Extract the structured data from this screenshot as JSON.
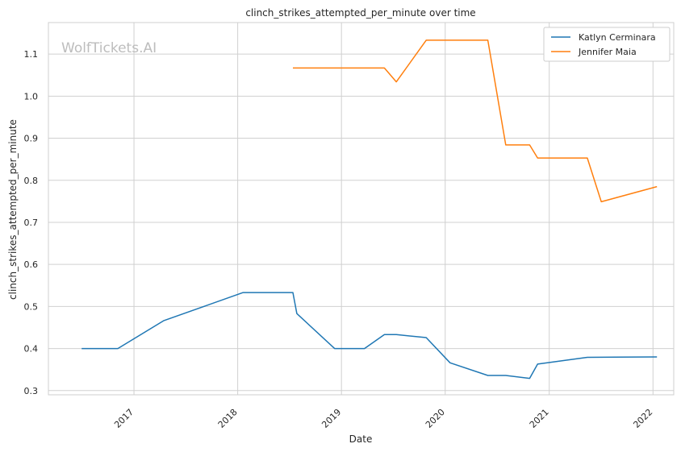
{
  "chart_data": {
    "type": "line",
    "title": "clinch_strikes_attempted_per_minute over time",
    "xlabel": "Date",
    "ylabel": "clinch_strikes_attempted_per_minute",
    "watermark": "WolfTickets.AI",
    "xlim": [
      "2016-03-06",
      "2022-03-15"
    ],
    "ylim": [
      0.29,
      1.175
    ],
    "x_ticks": [
      "2017",
      "2018",
      "2019",
      "2020",
      "2021",
      "2022"
    ],
    "y_ticks": [
      "0.3",
      "0.4",
      "0.5",
      "0.6",
      "0.7",
      "0.8",
      "0.9",
      "1.0",
      "1.1"
    ],
    "grid": true,
    "legend_position": "top-right",
    "series": [
      {
        "name": "Katlyn Cerminara",
        "color": "#1f77b4",
        "points": [
          {
            "x": "2016-07-01",
            "y": 0.4
          },
          {
            "x": "2016-11-05",
            "y": 0.4
          },
          {
            "x": "2017-04-15",
            "y": 0.466
          },
          {
            "x": "2018-01-20",
            "y": 0.533
          },
          {
            "x": "2018-07-14",
            "y": 0.533
          },
          {
            "x": "2018-07-28",
            "y": 0.483
          },
          {
            "x": "2018-12-08",
            "y": 0.4
          },
          {
            "x": "2019-03-23",
            "y": 0.4
          },
          {
            "x": "2019-06-01",
            "y": 0.433
          },
          {
            "x": "2019-07-13",
            "y": 0.433
          },
          {
            "x": "2019-10-26",
            "y": 0.426
          },
          {
            "x": "2020-01-18",
            "y": 0.366
          },
          {
            "x": "2020-05-30",
            "y": 0.336
          },
          {
            "x": "2020-08-01",
            "y": 0.336
          },
          {
            "x": "2020-10-24",
            "y": 0.329
          },
          {
            "x": "2020-11-21",
            "y": 0.363
          },
          {
            "x": "2021-05-15",
            "y": 0.379
          },
          {
            "x": "2022-01-15",
            "y": 0.38
          }
        ]
      },
      {
        "name": "Jennifer Maia",
        "color": "#ff7f0e",
        "points": [
          {
            "x": "2018-07-14",
            "y": 1.067
          },
          {
            "x": "2019-06-01",
            "y": 1.067
          },
          {
            "x": "2019-07-13",
            "y": 1.034
          },
          {
            "x": "2019-10-26",
            "y": 1.133
          },
          {
            "x": "2020-05-30",
            "y": 1.133
          },
          {
            "x": "2020-08-01",
            "y": 0.884
          },
          {
            "x": "2020-10-24",
            "y": 0.884
          },
          {
            "x": "2020-11-21",
            "y": 0.853
          },
          {
            "x": "2021-05-15",
            "y": 0.853
          },
          {
            "x": "2021-07-03",
            "y": 0.749
          },
          {
            "x": "2022-01-15",
            "y": 0.785
          }
        ]
      }
    ]
  }
}
